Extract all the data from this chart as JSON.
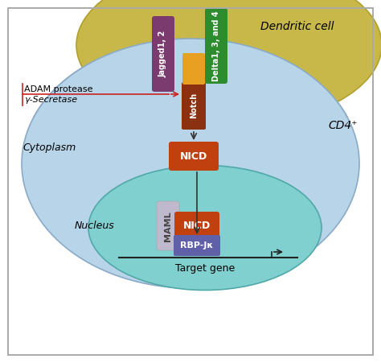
{
  "bg_color": "#ffffff",
  "border_color": "#aaaaaa",
  "dendritic_color": "#c8b84a",
  "dendritic_edge": "#b0a030",
  "dendritic_label": "Dendritic cell",
  "cd4_color": "#b8d4e8",
  "cd4_edge": "#8aaac8",
  "cd4_label": "CD4⁺",
  "cytoplasm_label": "Cytoplasm",
  "nucleus_color": "#80d0d0",
  "nucleus_edge": "#50a8a8",
  "nucleus_label": "Nucleus",
  "jagged_color": "#7b3b6e",
  "jagged_label": "Jagged1, 2",
  "delta_color": "#2d8c2d",
  "delta_label": "Delta1, 3, and 4",
  "notch_top_color": "#e8a020",
  "notch_bottom_color": "#8b3010",
  "notch_label": "Notch",
  "nicd_color": "#c04010",
  "nicd_label": "NICD",
  "maml_color": "#c0b8cc",
  "maml_label": "MAML",
  "rbpjk_color": "#6060a8",
  "rbpjk_label": "RBP-Jκ",
  "adam_label": "ADAM protease",
  "secretase_label": "γ-Secretase",
  "target_gene_label": "Target gene",
  "arrow_color": "#333333",
  "red_color": "#cc2222"
}
